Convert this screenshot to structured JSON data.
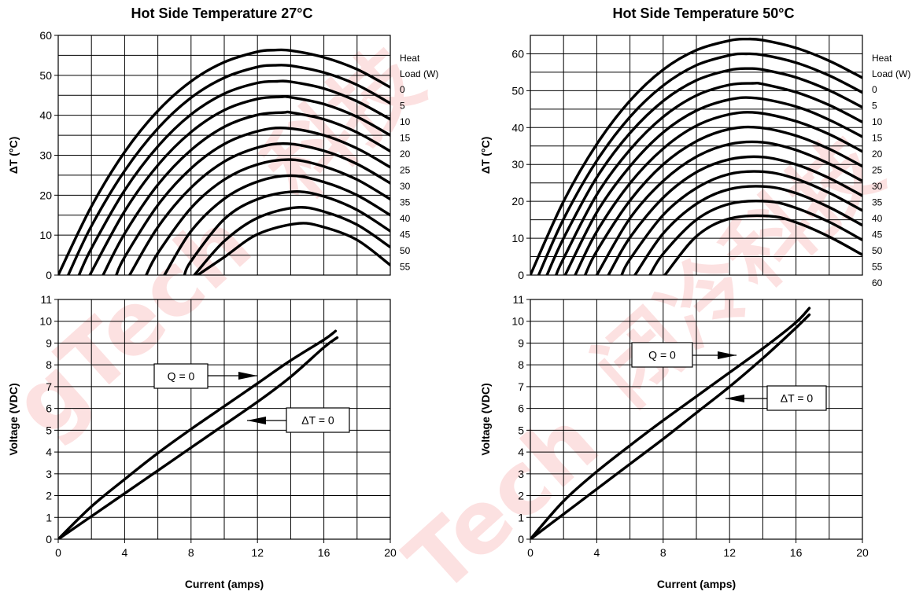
{
  "chart_data": [
    {
      "type": "line",
      "title": "Hot Side Temperature 27°C",
      "xlabel": "",
      "ylabel": "ΔT (°C)",
      "xlim": [
        0,
        20
      ],
      "ylim": [
        0,
        60
      ],
      "xticks": [],
      "yticks": [
        0,
        10,
        20,
        30,
        40,
        50,
        60
      ],
      "grid": true,
      "legend_title": [
        "Heat",
        "Load (W)"
      ],
      "legend_position": "right",
      "series": [
        {
          "name": "0",
          "x": [
            0,
            2,
            4,
            6,
            8,
            10,
            12,
            13,
            14,
            16,
            18,
            20
          ],
          "y": [
            0,
            17.2,
            30.8,
            41.1,
            48.5,
            53.3,
            55.9,
            56.3,
            56.2,
            54.5,
            51.5,
            47.0
          ]
        },
        {
          "name": "5",
          "x": [
            0.6,
            2,
            4,
            6,
            8,
            10,
            12,
            13,
            14,
            16,
            18,
            20
          ],
          "y": [
            0,
            12.3,
            26.1,
            36.7,
            44.4,
            49.4,
            52.1,
            52.5,
            52.4,
            50.7,
            47.6,
            43.0
          ]
        },
        {
          "name": "10",
          "x": [
            1.25,
            2,
            4,
            6,
            8,
            10,
            12,
            13.2,
            14,
            16,
            18,
            20
          ],
          "y": [
            0,
            6.7,
            21.2,
            32.2,
            40.2,
            45.4,
            48.1,
            48.5,
            48.4,
            46.7,
            43.5,
            39.0
          ]
        },
        {
          "name": "15",
          "x": [
            1.9,
            4,
            6,
            8,
            10,
            12,
            13.4,
            14,
            16,
            18,
            20
          ],
          "y": [
            0,
            16.0,
            27.5,
            35.8,
            41.3,
            44.1,
            44.6,
            44.5,
            42.8,
            39.6,
            35.0
          ]
        },
        {
          "name": "20",
          "x": [
            2.7,
            4,
            6,
            8,
            10,
            12,
            13.6,
            14,
            16,
            18,
            20
          ],
          "y": [
            0,
            10.4,
            22.6,
            31.3,
            37.1,
            40.1,
            40.7,
            40.7,
            39.0,
            35.7,
            31.0
          ]
        },
        {
          "name": "25",
          "x": [
            3.5,
            4,
            6,
            8,
            10,
            12,
            13.7,
            16,
            18,
            20
          ],
          "y": [
            0,
            4.5,
            17.5,
            26.7,
            32.8,
            36.0,
            36.8,
            35.0,
            31.7,
            27.0
          ]
        },
        {
          "name": "30",
          "x": [
            4.3,
            6,
            8,
            10,
            12,
            13.8,
            16,
            18,
            20
          ],
          "y": [
            0,
            12.0,
            21.9,
            28.4,
            31.9,
            32.9,
            31.1,
            27.8,
            23.0
          ]
        },
        {
          "name": "35",
          "x": [
            5.3,
            6,
            8,
            10,
            12,
            14,
            16,
            18,
            20
          ],
          "y": [
            0,
            5.5,
            16.8,
            23.9,
            27.7,
            28.9,
            27.2,
            23.9,
            19.0
          ]
        },
        {
          "name": "40",
          "x": [
            6.4,
            8,
            10,
            12,
            14,
            16,
            18,
            20
          ],
          "y": [
            0,
            11.0,
            19.1,
            23.4,
            24.9,
            23.3,
            20.0,
            15.0
          ]
        },
        {
          "name": "45",
          "x": [
            7.6,
            8,
            10,
            12,
            14.2,
            16,
            18,
            20
          ],
          "y": [
            0,
            3.5,
            14.0,
            19.0,
            20.9,
            19.7,
            16.3,
            11.0
          ]
        },
        {
          "name": "50",
          "x": [
            8.2,
            10,
            12,
            14.3,
            16,
            18,
            20
          ],
          "y": [
            0,
            8.5,
            14.3,
            16.9,
            15.9,
            12.6,
            7.0
          ]
        },
        {
          "name": "55",
          "x": [
            8.4,
            10,
            12,
            14.4,
            16,
            18,
            20
          ],
          "y": [
            0,
            4.5,
            10.2,
            12.9,
            12.0,
            8.8,
            2.5
          ]
        }
      ]
    },
    {
      "type": "line",
      "title": "",
      "xlabel": "Current (amps)",
      "ylabel": "Voltage (VDC)",
      "xlim": [
        0,
        20
      ],
      "ylim": [
        0,
        11
      ],
      "xticks": [
        0,
        4,
        8,
        12,
        16,
        20
      ],
      "yticks": [
        0,
        1,
        2,
        3,
        4,
        5,
        6,
        7,
        8,
        9,
        10,
        11
      ],
      "grid": true,
      "annotations": [
        "Q = 0",
        "ΔT = 0"
      ],
      "series": [
        {
          "name": "Q = 0",
          "x": [
            0,
            2,
            4,
            6,
            8,
            10,
            12,
            14,
            16,
            16.7
          ],
          "y": [
            0,
            1.5,
            2.75,
            3.95,
            5.05,
            6.1,
            7.15,
            8.2,
            9.15,
            9.55
          ]
        },
        {
          "name": "ΔT = 0",
          "x": [
            0,
            2,
            4,
            6,
            8,
            10,
            12,
            14,
            16,
            16.8
          ],
          "y": [
            0,
            1.05,
            2.1,
            3.15,
            4.2,
            5.25,
            6.3,
            7.45,
            8.8,
            9.25
          ]
        }
      ]
    },
    {
      "type": "line",
      "title": "Hot Side Temperature 50°C",
      "xlabel": "",
      "ylabel": "ΔT (°C)",
      "xlim": [
        0,
        20
      ],
      "ylim": [
        0,
        65
      ],
      "xticks": [],
      "yticks": [
        0,
        10,
        20,
        30,
        40,
        50,
        60
      ],
      "grid": true,
      "legend_title": [
        "Heat",
        "Load (W)"
      ],
      "legend_position": "right",
      "series": [
        {
          "name": "0",
          "x": [
            0,
            2,
            4,
            6,
            8,
            10,
            12,
            13,
            14,
            16,
            18,
            20
          ],
          "y": [
            0,
            20.0,
            35.5,
            47.3,
            55.7,
            61.0,
            63.6,
            64.0,
            63.7,
            61.6,
            58.1,
            53.5
          ]
        },
        {
          "name": "5",
          "x": [
            0.5,
            2,
            4,
            6,
            8,
            10,
            12,
            13,
            14,
            16,
            18,
            20
          ],
          "y": [
            0,
            15.2,
            31.0,
            42.9,
            51.4,
            56.9,
            59.6,
            60.0,
            59.7,
            57.6,
            54.1,
            49.5
          ]
        },
        {
          "name": "10",
          "x": [
            1.0,
            2,
            4,
            6,
            8,
            10,
            12,
            13.2,
            14,
            16,
            18,
            20
          ],
          "y": [
            0,
            10.0,
            26.5,
            38.5,
            47.2,
            52.8,
            55.6,
            56.0,
            55.7,
            53.6,
            50.1,
            45.5
          ]
        },
        {
          "name": "15",
          "x": [
            1.55,
            2,
            4,
            6,
            8,
            10,
            12,
            13.4,
            14,
            16,
            18,
            20
          ],
          "y": [
            0,
            4.5,
            21.8,
            34.0,
            42.9,
            48.7,
            51.6,
            52.0,
            51.8,
            49.6,
            46.1,
            41.5
          ]
        },
        {
          "name": "20",
          "x": [
            2.1,
            4,
            6,
            8,
            10,
            12,
            13.6,
            16,
            18,
            20
          ],
          "y": [
            0,
            17.0,
            29.5,
            38.7,
            44.6,
            47.6,
            48.0,
            45.7,
            42.1,
            37.5
          ]
        },
        {
          "name": "25",
          "x": [
            2.7,
            4,
            6,
            8,
            10,
            12,
            13.7,
            16,
            18,
            20
          ],
          "y": [
            0,
            11.8,
            24.9,
            34.3,
            40.5,
            43.6,
            44.0,
            41.7,
            38.2,
            33.5
          ]
        },
        {
          "name": "30",
          "x": [
            3.3,
            4,
            6,
            8,
            10,
            12,
            13.8,
            16,
            18,
            20
          ],
          "y": [
            0,
            6.5,
            20.2,
            30.0,
            36.3,
            39.6,
            40.0,
            37.8,
            34.2,
            29.5
          ]
        },
        {
          "name": "35",
          "x": [
            4.0,
            6,
            8,
            10,
            12,
            14,
            16,
            18,
            20
          ],
          "y": [
            0,
            15.4,
            25.5,
            32.1,
            35.5,
            36.0,
            33.9,
            30.2,
            25.5
          ]
        },
        {
          "name": "40",
          "x": [
            4.7,
            6,
            8,
            10,
            12,
            14,
            16,
            18,
            20
          ],
          "y": [
            0,
            10.2,
            21.0,
            27.9,
            31.4,
            32.0,
            30.0,
            26.3,
            21.5
          ]
        },
        {
          "name": "45",
          "x": [
            5.5,
            6,
            8,
            10,
            12,
            14.1,
            16,
            18,
            20
          ],
          "y": [
            0,
            4.3,
            16.3,
            23.6,
            27.4,
            28.0,
            26.1,
            22.3,
            17.5
          ]
        },
        {
          "name": "50",
          "x": [
            6.3,
            8,
            10,
            12,
            14.2,
            16,
            18,
            20
          ],
          "y": [
            0,
            11.3,
            19.3,
            23.3,
            24.0,
            22.2,
            18.4,
            13.5
          ]
        },
        {
          "name": "55",
          "x": [
            7.2,
            8,
            10,
            12,
            14.3,
            16,
            18,
            20
          ],
          "y": [
            0,
            5.8,
            15.0,
            19.3,
            20.0,
            18.2,
            14.4,
            9.5
          ]
        },
        {
          "name": "60",
          "x": [
            8.1,
            10,
            12,
            14.4,
            16,
            18,
            20
          ],
          "y": [
            0,
            10.5,
            15.3,
            16.0,
            14.3,
            10.4,
            5.5
          ]
        }
      ]
    },
    {
      "type": "line",
      "title": "",
      "xlabel": "Current (amps)",
      "ylabel": "Voltage (VDC)",
      "xlim": [
        0,
        20
      ],
      "ylim": [
        0,
        11
      ],
      "xticks": [
        0,
        4,
        8,
        12,
        16,
        20
      ],
      "yticks": [
        0,
        1,
        2,
        3,
        4,
        5,
        6,
        7,
        8,
        9,
        10,
        11
      ],
      "grid": true,
      "annotations": [
        "Q = 0",
        "ΔT = 0"
      ],
      "series": [
        {
          "name": "Q = 0",
          "x": [
            0,
            2,
            4,
            6,
            8,
            10,
            12,
            14,
            16,
            16.8
          ],
          "y": [
            0,
            1.75,
            3.1,
            4.3,
            5.45,
            6.55,
            7.65,
            8.75,
            9.95,
            10.6
          ]
        },
        {
          "name": "ΔT = 0",
          "x": [
            0,
            2,
            4,
            6,
            8,
            10,
            12,
            14,
            16,
            16.8
          ],
          "y": [
            0,
            1.15,
            2.3,
            3.45,
            4.6,
            5.8,
            7.0,
            8.3,
            9.7,
            10.3
          ]
        }
      ]
    }
  ]
}
